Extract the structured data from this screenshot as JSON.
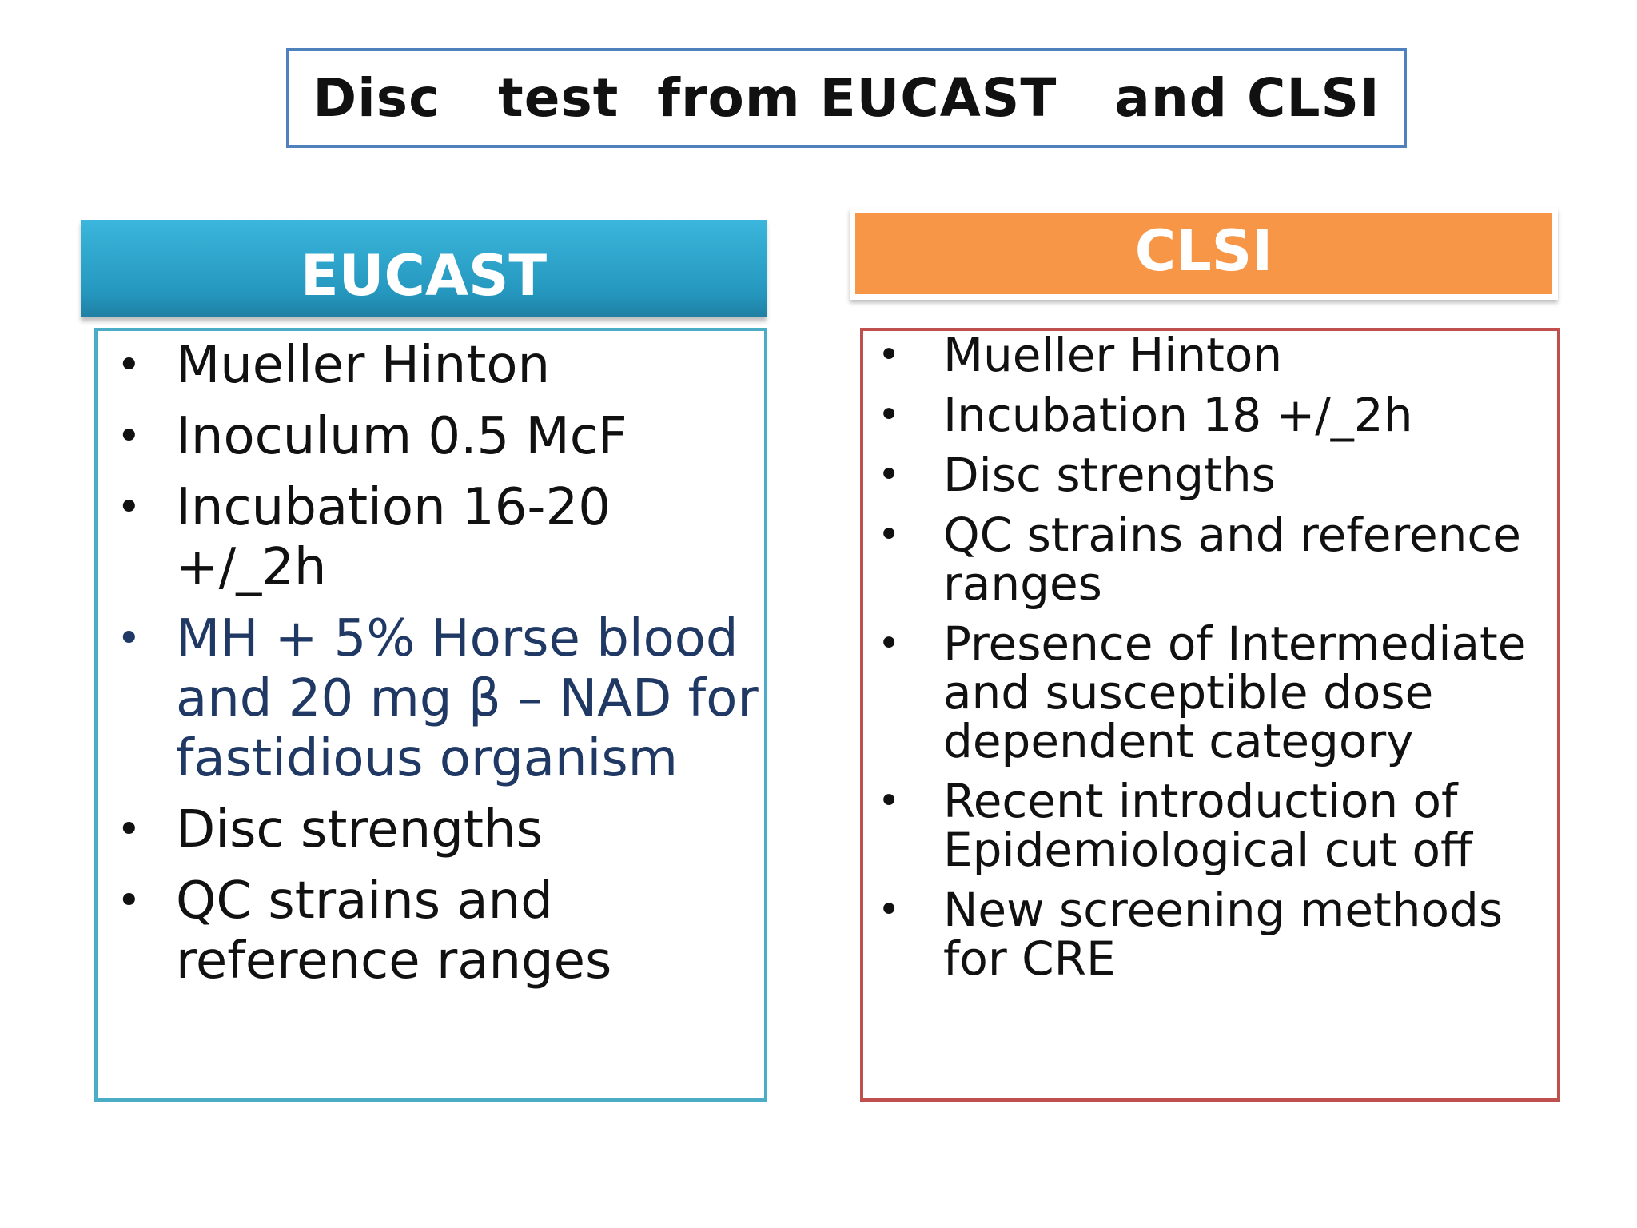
{
  "title": "Disc   test  from EUCAST   and CLSI",
  "colors": {
    "title_border": "#4f81bd",
    "eucast_header": "#2fa5cc",
    "eucast_border": "#4bacc6",
    "clsi_header": "#f79646",
    "clsi_border": "#c0504d",
    "highlight_text": "#1f3864"
  },
  "eucast": {
    "header": "EUCAST",
    "bullet": "•",
    "items": [
      "Mueller Hinton",
      "Inoculum 0.5 McF",
      "Incubation 16-20 +/_2h",
      "MH + 5%  Horse blood and 20 mg β – NAD for fastidious organism",
      "Disc strengths",
      "QC strains and reference ranges"
    ]
  },
  "clsi": {
    "header": "CLSI",
    "bullet": "•",
    "items": [
      "Mueller Hinton",
      "Incubation 18 +/_2h",
      "Disc strengths",
      "QC strains and reference ranges",
      "Presence of Intermediate and susceptible dose dependent category",
      "Recent introduction of Epidemiological cut off",
      "New screening methods for CRE"
    ]
  }
}
